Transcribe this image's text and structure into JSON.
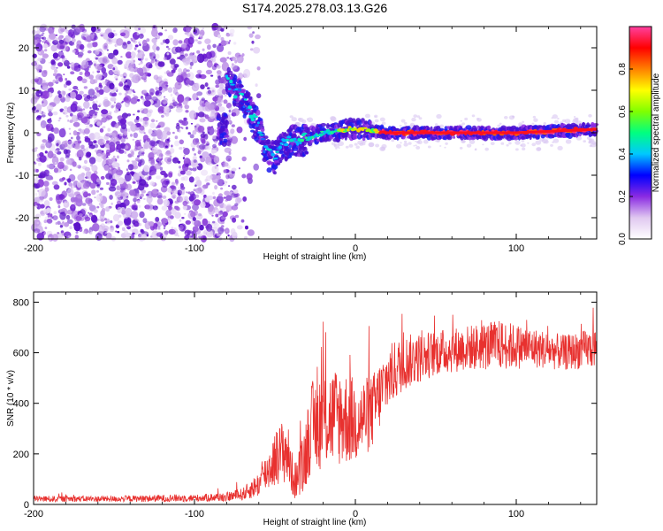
{
  "title": "S174.2025.278.03.13.G26",
  "chart_data": [
    {
      "type": "heatmap",
      "xlabel": "Height of straight line (km)",
      "ylabel": "Frequency (Hz)",
      "xlim": [
        -200,
        150
      ],
      "ylim": [
        -25,
        25
      ],
      "xticks": [
        -200,
        -100,
        0,
        100
      ],
      "yticks": [
        -20,
        -10,
        0,
        10,
        20
      ],
      "colorbar": {
        "label": "Normalized spectral amplitude",
        "range": [
          0,
          1
        ],
        "ticks": [
          0.0,
          0.2,
          0.4,
          0.6,
          0.8
        ],
        "tick_labels": [
          "0.0",
          "0.2",
          "0.4",
          "0.6",
          "0.8"
        ],
        "colors": [
          "#ffffff",
          "#e0c8f0",
          "#8a2be2",
          "#0000ff",
          "#00c8ff",
          "#00ff80",
          "#80ff00",
          "#ffff00",
          "#ff8000",
          "#ff0000",
          "#ff40a0"
        ]
      },
      "signal_ridge": [
        {
          "x": -80,
          "y": 12
        },
        {
          "x": -70,
          "y": 8
        },
        {
          "x": -60,
          "y": 1
        },
        {
          "x": -55,
          "y": -5
        },
        {
          "x": -50,
          "y": -6
        },
        {
          "x": -45,
          "y": -3
        },
        {
          "x": -40,
          "y": -2
        },
        {
          "x": -30,
          "y": -1.5
        },
        {
          "x": -20,
          "y": 0
        },
        {
          "x": -10,
          "y": 0.5
        },
        {
          "x": 0,
          "y": 1
        },
        {
          "x": 10,
          "y": 0.5
        },
        {
          "x": 20,
          "y": 0
        },
        {
          "x": 50,
          "y": 0
        },
        {
          "x": 100,
          "y": 0
        },
        {
          "x": 150,
          "y": 0.8
        }
      ]
    },
    {
      "type": "line",
      "xlabel": "Height of straight line (km)",
      "ylabel": "SNR (10 * v/v)",
      "xlim": [
        -200,
        150
      ],
      "ylim": [
        0,
        840
      ],
      "xticks": [
        -200,
        -100,
        0,
        100
      ],
      "yticks": [
        0,
        200,
        400,
        600,
        800
      ],
      "color": "#e8312f",
      "series": [
        {
          "name": "SNR",
          "envelope": [
            {
              "x": -200,
              "mean": 22,
              "spread": 12
            },
            {
              "x": -150,
              "mean": 22,
              "spread": 12
            },
            {
              "x": -110,
              "mean": 25,
              "spread": 15
            },
            {
              "x": -100,
              "mean": 25,
              "spread": 14
            },
            {
              "x": -80,
              "mean": 30,
              "spread": 18
            },
            {
              "x": -70,
              "mean": 40,
              "spread": 25
            },
            {
              "x": -60,
              "mean": 80,
              "spread": 50
            },
            {
              "x": -50,
              "mean": 180,
              "spread": 110
            },
            {
              "x": -43,
              "mean": 220,
              "spread": 140
            },
            {
              "x": -38,
              "mean": 90,
              "spread": 70
            },
            {
              "x": -33,
              "mean": 140,
              "spread": 120
            },
            {
              "x": -28,
              "mean": 300,
              "spread": 180
            },
            {
              "x": -20,
              "mean": 340,
              "spread": 200
            },
            {
              "x": -10,
              "mean": 350,
              "spread": 200
            },
            {
              "x": 0,
              "mean": 330,
              "spread": 170
            },
            {
              "x": 10,
              "mean": 360,
              "spread": 150
            },
            {
              "x": 20,
              "mean": 500,
              "spread": 130
            },
            {
              "x": 30,
              "mean": 560,
              "spread": 110
            },
            {
              "x": 50,
              "mean": 600,
              "spread": 90
            },
            {
              "x": 70,
              "mean": 620,
              "spread": 90
            },
            {
              "x": 90,
              "mean": 630,
              "spread": 100
            },
            {
              "x": 110,
              "mean": 620,
              "spread": 80
            },
            {
              "x": 130,
              "mean": 600,
              "spread": 70
            },
            {
              "x": 150,
              "mean": 620,
              "spread": 80
            }
          ]
        }
      ]
    }
  ]
}
